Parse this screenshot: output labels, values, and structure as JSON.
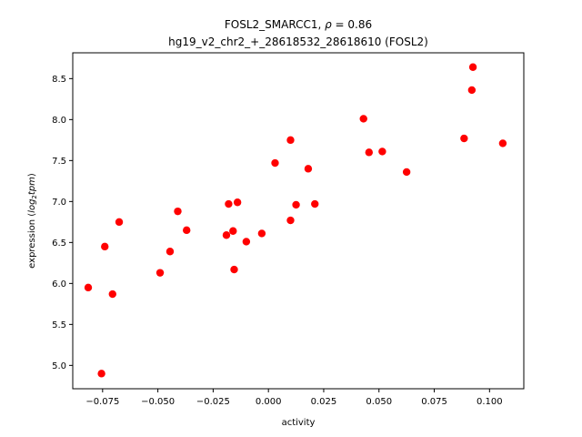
{
  "chart_data": {
    "type": "scatter",
    "title": {
      "line1_prefix": "FOSL2_SMARCC1, ",
      "rho_symbol": "ρ",
      "rho_text": " = 0.86",
      "line2": "hg19_v2_chr2_+_28618532_28618610 (FOSL2)"
    },
    "xlabel": "activity",
    "ylabel": {
      "prefix": "expression (",
      "log": "log",
      "sub": "2",
      "suffix_var": "tpm",
      "close": ")"
    },
    "xlim": [
      -0.0885,
      0.1155
    ],
    "ylim": [
      4.715,
      8.815
    ],
    "xticks": [
      {
        "value": -0.075,
        "label": "−0.075"
      },
      {
        "value": -0.05,
        "label": "−0.050"
      },
      {
        "value": -0.025,
        "label": "−0.025"
      },
      {
        "value": 0.0,
        "label": "0.000"
      },
      {
        "value": 0.025,
        "label": "0.025"
      },
      {
        "value": 0.05,
        "label": "0.050"
      },
      {
        "value": 0.075,
        "label": "0.075"
      },
      {
        "value": 0.1,
        "label": "0.100"
      }
    ],
    "yticks": [
      {
        "value": 5.0,
        "label": "5.0"
      },
      {
        "value": 5.5,
        "label": "5.5"
      },
      {
        "value": 6.0,
        "label": "6.0"
      },
      {
        "value": 6.5,
        "label": "6.5"
      },
      {
        "value": 7.0,
        "label": "7.0"
      },
      {
        "value": 7.5,
        "label": "7.5"
      },
      {
        "value": 8.0,
        "label": "8.0"
      },
      {
        "value": 8.5,
        "label": "8.5"
      }
    ],
    "marker_color": "#ff0000",
    "series": [
      {
        "name": "samples",
        "points": [
          {
            "x": -0.0815,
            "y": 5.95
          },
          {
            "x": -0.0755,
            "y": 4.9
          },
          {
            "x": -0.074,
            "y": 6.45
          },
          {
            "x": -0.0705,
            "y": 5.87
          },
          {
            "x": -0.0675,
            "y": 6.75
          },
          {
            "x": -0.049,
            "y": 6.13
          },
          {
            "x": -0.0445,
            "y": 6.39
          },
          {
            "x": -0.041,
            "y": 6.88
          },
          {
            "x": -0.037,
            "y": 6.65
          },
          {
            "x": -0.019,
            "y": 6.59
          },
          {
            "x": -0.018,
            "y": 6.97
          },
          {
            "x": -0.016,
            "y": 6.64
          },
          {
            "x": -0.0155,
            "y": 6.17
          },
          {
            "x": -0.014,
            "y": 6.99
          },
          {
            "x": -0.01,
            "y": 6.51
          },
          {
            "x": -0.003,
            "y": 6.61
          },
          {
            "x": 0.003,
            "y": 7.47
          },
          {
            "x": 0.01,
            "y": 7.75
          },
          {
            "x": 0.01,
            "y": 6.77
          },
          {
            "x": 0.0125,
            "y": 6.96
          },
          {
            "x": 0.018,
            "y": 7.4
          },
          {
            "x": 0.021,
            "y": 6.97
          },
          {
            "x": 0.043,
            "y": 8.01
          },
          {
            "x": 0.0455,
            "y": 7.6
          },
          {
            "x": 0.0515,
            "y": 7.61
          },
          {
            "x": 0.0625,
            "y": 7.36
          },
          {
            "x": 0.0885,
            "y": 7.77
          },
          {
            "x": 0.092,
            "y": 8.36
          },
          {
            "x": 0.0925,
            "y": 8.64
          },
          {
            "x": 0.106,
            "y": 7.71
          }
        ]
      }
    ]
  }
}
